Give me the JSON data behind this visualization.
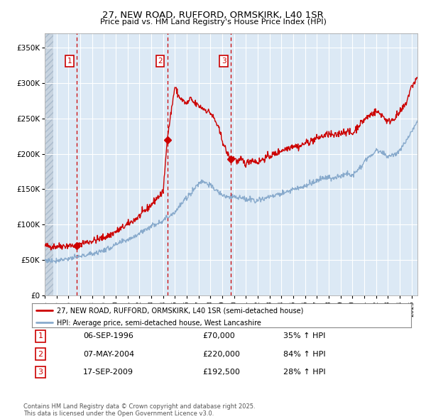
{
  "title": "27, NEW ROAD, RUFFORD, ORMSKIRK, L40 1SR",
  "subtitle": "Price paid vs. HM Land Registry's House Price Index (HPI)",
  "legend_line1": "27, NEW ROAD, RUFFORD, ORMSKIRK, L40 1SR (semi-detached house)",
  "legend_line2": "HPI: Average price, semi-detached house, West Lancashire",
  "footnote": "Contains HM Land Registry data © Crown copyright and database right 2025.\nThis data is licensed under the Open Government Licence v3.0.",
  "transactions": [
    {
      "label": "1",
      "date": "06-SEP-1996",
      "price": 70000,
      "hpi_pct": "35% ↑ HPI"
    },
    {
      "label": "2",
      "date": "07-MAY-2004",
      "price": 220000,
      "hpi_pct": "84% ↑ HPI"
    },
    {
      "label": "3",
      "date": "17-SEP-2009",
      "price": 192500,
      "hpi_pct": "28% ↑ HPI"
    }
  ],
  "xlim": [
    1994.0,
    2025.5
  ],
  "ylim": [
    0,
    370000
  ],
  "yticks": [
    0,
    50000,
    100000,
    150000,
    200000,
    250000,
    300000,
    350000
  ],
  "ytick_labels": [
    "£0",
    "£50K",
    "£100K",
    "£150K",
    "£200K",
    "£250K",
    "£300K",
    "£350K"
  ],
  "xtick_years": [
    1994,
    1995,
    1996,
    1997,
    1998,
    1999,
    2000,
    2001,
    2002,
    2003,
    2004,
    2005,
    2006,
    2007,
    2008,
    2009,
    2010,
    2011,
    2012,
    2013,
    2014,
    2015,
    2016,
    2017,
    2018,
    2019,
    2020,
    2021,
    2022,
    2023,
    2024,
    2025
  ],
  "line_color_red": "#cc0000",
  "line_color_blue": "#88aacc",
  "bg_plot": "#dce9f5",
  "bg_hatched_color": "#c8d4e0",
  "grid_color": "#ffffff",
  "dashed_line_color": "#cc0000",
  "sale1_year": 1996.7,
  "sale1_price": 70000,
  "sale2_year": 2004.35,
  "sale2_price": 220000,
  "sale3_year": 2009.72,
  "sale3_price": 192500
}
